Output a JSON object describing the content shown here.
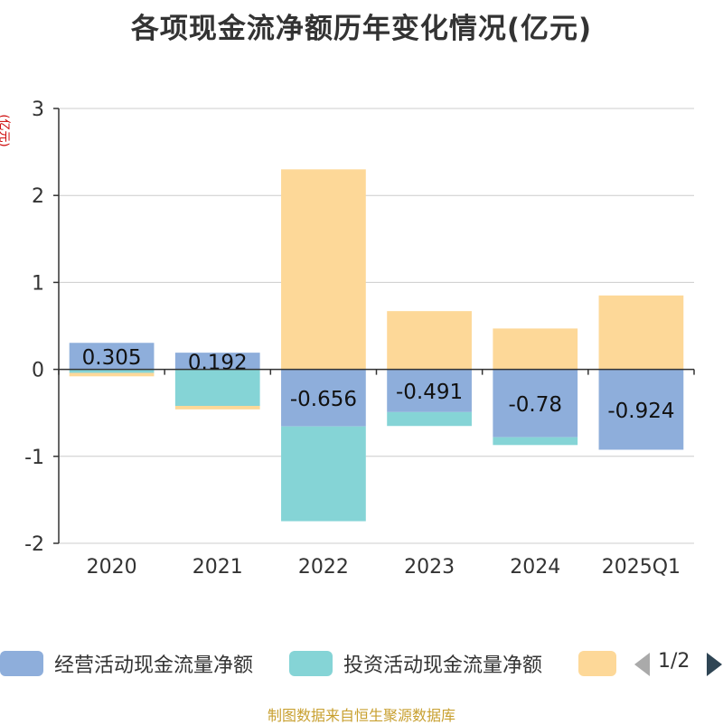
{
  "chart_data": {
    "type": "bar",
    "stacked": true,
    "title": "各项现金流净额历年变化情况(亿元)",
    "ylabel": "(亿元)",
    "ylim": [
      -2,
      3
    ],
    "yticks": [
      -2,
      -1,
      0,
      1,
      2,
      3
    ],
    "grid": true,
    "categories": [
      "2020",
      "2021",
      "2022",
      "2023",
      "2024",
      "2025Q1"
    ],
    "series": [
      {
        "name": "经营活动现金流量净额",
        "color": "#8eaedb",
        "values": [
          0.305,
          0.192,
          -0.656,
          -0.491,
          -0.78,
          -0.924
        ],
        "show_labels": true
      },
      {
        "name": "投资活动现金流量净额",
        "color": "#85d4d6",
        "values": [
          -0.04,
          -0.42,
          -1.09,
          -0.16,
          -0.09,
          0.0
        ]
      },
      {
        "name": "",
        "color": "#fdd898",
        "values": [
          -0.04,
          -0.04,
          2.3,
          0.67,
          0.47,
          0.85
        ]
      }
    ],
    "legend_position": "bottom"
  },
  "legend": {
    "items": [
      {
        "label": "经营活动现金流量净额",
        "color": "#8eaedb"
      },
      {
        "label": "投资活动现金流量净额",
        "color": "#85d4d6"
      },
      {
        "label": "",
        "color": "#fdd898"
      }
    ],
    "page": "1/2"
  },
  "source": "制图数据来自恒生聚源数据库"
}
